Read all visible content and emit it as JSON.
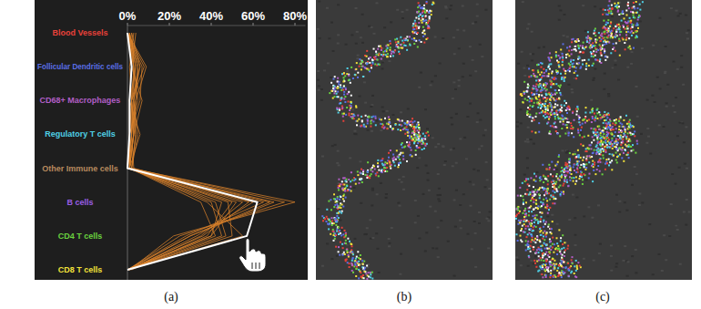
{
  "chart_data": {
    "type": "parallel",
    "categories": [
      "Blood Vessels",
      "Follicular Dendritic cells",
      "CD68+ Macrophages",
      "Regulatory T cells",
      "Other Immune cells",
      "B cells",
      "CD4 T cells",
      "CD8 T cells"
    ],
    "colors": [
      "#e8413a",
      "#5a6ee6",
      "#b25ec6",
      "#4fd0e6",
      "#b98a5e",
      "#9a5ee8",
      "#6ad23e",
      "#f2e23a"
    ],
    "xlim": [
      0,
      85
    ],
    "xticks": [
      {
        "value": 0,
        "label": "0%"
      },
      {
        "value": 20,
        "label": "20%"
      },
      {
        "value": 40,
        "label": "40%"
      },
      {
        "value": 60,
        "label": "60%"
      },
      {
        "value": 80,
        "label": "80%"
      }
    ],
    "series": [
      {
        "color": "#d9822b",
        "values": [
          1,
          4,
          2,
          3,
          1,
          70,
          30,
          0
        ]
      },
      {
        "color": "#d9822b",
        "values": [
          0,
          6,
          3,
          2,
          1,
          80,
          22,
          1
        ]
      },
      {
        "color": "#d9822b",
        "values": [
          2,
          3,
          5,
          1,
          0,
          45,
          40,
          0
        ]
      },
      {
        "color": "#d9822b",
        "values": [
          0,
          8,
          2,
          4,
          2,
          55,
          35,
          1
        ]
      },
      {
        "color": "#d9822b",
        "values": [
          1,
          2,
          1,
          6,
          1,
          40,
          45,
          0
        ]
      },
      {
        "color": "#d9822b",
        "values": [
          0,
          5,
          4,
          2,
          3,
          65,
          28,
          0
        ]
      },
      {
        "color": "#d9822b",
        "values": [
          3,
          1,
          2,
          3,
          0,
          50,
          38,
          2
        ]
      },
      {
        "color": "#d9822b",
        "values": [
          0,
          7,
          6,
          1,
          1,
          35,
          42,
          0
        ]
      },
      {
        "color": "#d9822b",
        "values": [
          1,
          3,
          3,
          5,
          2,
          75,
          25,
          0
        ]
      },
      {
        "color": "#d9822b",
        "values": [
          0,
          4,
          1,
          2,
          0,
          60,
          33,
          1
        ]
      },
      {
        "color": "#d9822b",
        "values": [
          2,
          6,
          2,
          1,
          1,
          48,
          50,
          0
        ]
      },
      {
        "color": "#d9822b",
        "values": [
          0,
          2,
          7,
          3,
          1,
          58,
          36,
          0
        ]
      },
      {
        "color": "#d9822b",
        "values": [
          1,
          5,
          3,
          4,
          2,
          42,
          47,
          1
        ]
      },
      {
        "color": "#d9822b",
        "values": [
          0,
          3,
          2,
          2,
          0,
          68,
          30,
          0
        ]
      },
      {
        "color": "#d9822b",
        "values": [
          4,
          2,
          1,
          1,
          1,
          38,
          55,
          0
        ]
      },
      {
        "color": "#d9822b",
        "values": [
          0,
          9,
          4,
          3,
          1,
          52,
          40,
          0
        ]
      },
      {
        "color": "#ffffff",
        "values": [
          0,
          2,
          1,
          1,
          0,
          62,
          57,
          0
        ]
      }
    ]
  },
  "panel_labels": [
    "(a)",
    "(b)",
    "(c)"
  ]
}
